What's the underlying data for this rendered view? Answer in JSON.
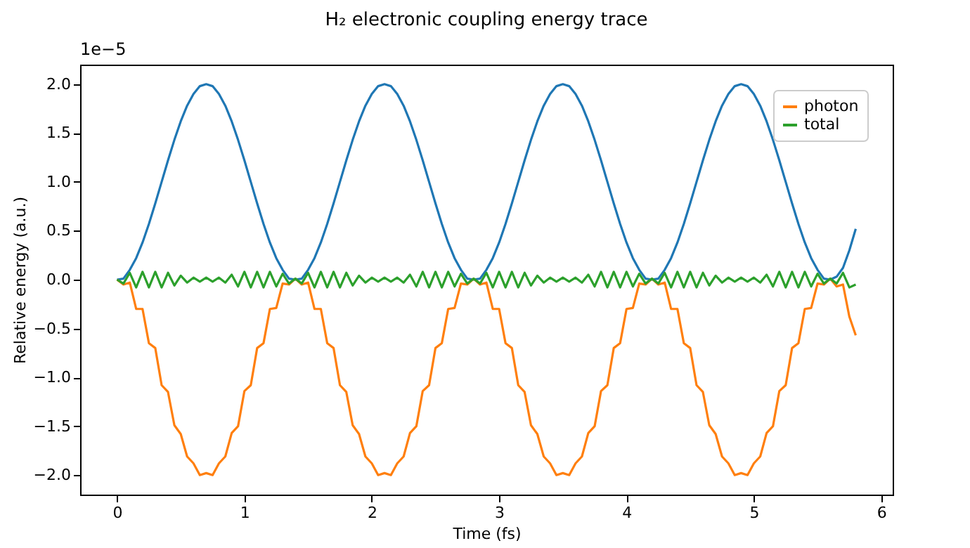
{
  "chart_data": {
    "type": "line",
    "title": "H₂ electronic coupling energy trace",
    "xlabel": "Time (fs)",
    "ylabel": "Relative energy (a.u.)",
    "annotations": [
      "1e−5"
    ],
    "x": [
      0,
      0.05,
      0.1,
      0.15,
      0.2,
      0.25,
      0.3,
      0.35,
      0.4,
      0.45,
      0.5,
      0.55,
      0.6,
      0.65,
      0.7,
      0.75,
      0.8,
      0.85,
      0.9,
      0.95,
      1.0,
      1.05,
      1.1,
      1.15,
      1.2,
      1.25,
      1.3,
      1.35,
      1.4,
      1.45,
      1.5,
      1.55,
      1.6,
      1.65,
      1.7,
      1.75,
      1.8,
      1.85,
      1.9,
      1.95,
      2.0,
      2.05,
      2.1,
      2.15,
      2.2,
      2.25,
      2.3,
      2.35,
      2.4,
      2.45,
      2.5,
      2.55,
      2.6,
      2.65,
      2.7,
      2.75,
      2.8,
      2.85,
      2.9,
      2.95,
      3.0,
      3.05,
      3.1,
      3.15,
      3.2,
      3.25,
      3.3,
      3.35,
      3.4,
      3.45,
      3.5,
      3.55,
      3.6,
      3.65,
      3.7,
      3.75,
      3.8,
      3.85,
      3.9,
      3.95,
      4.0,
      4.05,
      4.1,
      4.15,
      4.2,
      4.25,
      4.3,
      4.35,
      4.4,
      4.45,
      4.5,
      4.55,
      4.6,
      4.65,
      4.7,
      4.75,
      4.8,
      4.85,
      4.9,
      4.95,
      5.0,
      5.05,
      5.1,
      5.15,
      5.2,
      5.25,
      5.3,
      5.35,
      5.4,
      5.45,
      5.5,
      5.55,
      5.6,
      5.65,
      5.7,
      5.75,
      5.8
    ],
    "series": [
      {
        "color": "#1f77b4",
        "values": [
          0,
          0.01,
          0.1,
          0.22,
          0.38,
          0.57,
          0.78,
          1.0,
          1.22,
          1.43,
          1.62,
          1.78,
          1.9,
          1.98,
          2.0,
          1.98,
          1.9,
          1.78,
          1.62,
          1.43,
          1.22,
          1.0,
          0.78,
          0.57,
          0.38,
          0.22,
          0.1,
          0.01,
          0,
          0.01,
          0.1,
          0.22,
          0.38,
          0.57,
          0.78,
          1.0,
          1.22,
          1.43,
          1.62,
          1.78,
          1.9,
          1.98,
          2.0,
          1.98,
          1.9,
          1.78,
          1.62,
          1.43,
          1.22,
          1.0,
          0.78,
          0.57,
          0.38,
          0.22,
          0.1,
          0.01,
          0,
          0.01,
          0.1,
          0.22,
          0.38,
          0.57,
          0.78,
          1.0,
          1.22,
          1.43,
          1.62,
          1.78,
          1.9,
          1.98,
          2.0,
          1.98,
          1.9,
          1.78,
          1.62,
          1.43,
          1.22,
          1.0,
          0.78,
          0.57,
          0.38,
          0.22,
          0.1,
          0.01,
          0,
          0.01,
          0.1,
          0.22,
          0.38,
          0.57,
          0.78,
          1.0,
          1.22,
          1.43,
          1.62,
          1.78,
          1.9,
          1.98,
          2.0,
          1.98,
          1.9,
          1.78,
          1.62,
          1.43,
          1.22,
          1.0,
          0.78,
          0.57,
          0.38,
          0.22,
          0.1,
          0.01,
          0,
          0.03,
          0.12,
          0.3,
          0.52
        ]
      },
      {
        "name": "photon",
        "color": "#ff7f0e",
        "values": [
          0,
          -0.05,
          -0.03,
          -0.3,
          -0.3,
          -0.65,
          -0.7,
          -1.08,
          -1.15,
          -1.49,
          -1.58,
          -1.81,
          -1.88,
          -2.0,
          -1.98,
          -2.0,
          -1.88,
          -1.81,
          -1.57,
          -1.5,
          -1.14,
          -1.08,
          -0.7,
          -0.65,
          -0.3,
          -0.29,
          -0.04,
          -0.05,
          0.01,
          -0.05,
          -0.03,
          -0.3,
          -0.3,
          -0.65,
          -0.7,
          -1.08,
          -1.15,
          -1.49,
          -1.58,
          -1.81,
          -1.88,
          -2.0,
          -1.98,
          -2.0,
          -1.88,
          -1.81,
          -1.57,
          -1.5,
          -1.14,
          -1.08,
          -0.7,
          -0.65,
          -0.3,
          -0.29,
          -0.04,
          -0.05,
          0.01,
          -0.05,
          -0.03,
          -0.3,
          -0.3,
          -0.65,
          -0.7,
          -1.08,
          -1.15,
          -1.49,
          -1.58,
          -1.81,
          -1.88,
          -2.0,
          -1.98,
          -2.0,
          -1.88,
          -1.81,
          -1.57,
          -1.5,
          -1.14,
          -1.08,
          -0.7,
          -0.65,
          -0.3,
          -0.29,
          -0.04,
          -0.05,
          0.01,
          -0.05,
          -0.03,
          -0.3,
          -0.3,
          -0.65,
          -0.7,
          -1.08,
          -1.15,
          -1.49,
          -1.58,
          -1.81,
          -1.88,
          -2.0,
          -1.98,
          -2.0,
          -1.88,
          -1.81,
          -1.57,
          -1.5,
          -1.14,
          -1.08,
          -0.7,
          -0.65,
          -0.3,
          -0.29,
          -0.04,
          -0.05,
          0.01,
          -0.07,
          -0.05,
          -0.38,
          -0.57
        ]
      },
      {
        "name": "total",
        "color": "#2ca02c",
        "values": [
          0,
          -0.04,
          0.07,
          -0.08,
          0.08,
          -0.08,
          0.08,
          -0.08,
          0.07,
          -0.06,
          0.04,
          -0.03,
          0.02,
          -0.02,
          0.02,
          -0.02,
          0.02,
          -0.03,
          0.05,
          -0.07,
          0.08,
          -0.08,
          0.08,
          -0.08,
          0.08,
          -0.07,
          0.06,
          -0.04,
          0.01,
          -0.04,
          0.07,
          -0.08,
          0.08,
          -0.08,
          0.08,
          -0.08,
          0.07,
          -0.06,
          0.04,
          -0.03,
          0.02,
          -0.02,
          0.02,
          -0.02,
          0.02,
          -0.03,
          0.05,
          -0.07,
          0.08,
          -0.08,
          0.08,
          -0.08,
          0.08,
          -0.07,
          0.06,
          -0.04,
          0.01,
          -0.04,
          0.07,
          -0.08,
          0.08,
          -0.08,
          0.08,
          -0.08,
          0.07,
          -0.06,
          0.04,
          -0.03,
          0.02,
          -0.02,
          0.02,
          -0.02,
          0.02,
          -0.03,
          0.05,
          -0.07,
          0.08,
          -0.08,
          0.08,
          -0.08,
          0.08,
          -0.07,
          0.06,
          -0.04,
          0.01,
          -0.04,
          0.07,
          -0.08,
          0.08,
          -0.08,
          0.08,
          -0.08,
          0.07,
          -0.06,
          0.04,
          -0.03,
          0.02,
          -0.02,
          0.02,
          -0.02,
          0.02,
          -0.03,
          0.05,
          -0.07,
          0.08,
          -0.08,
          0.08,
          -0.08,
          0.08,
          -0.07,
          0.06,
          -0.04,
          0.01,
          -0.04,
          0.07,
          -0.08,
          -0.05
        ]
      }
    ],
    "xlim": [
      -0.29,
      6.09
    ],
    "xticks": [
      0,
      1,
      2,
      3,
      4,
      5,
      6
    ],
    "ylim": [
      -2.2,
      2.2
    ],
    "yticks": [
      {
        "value": -2,
        "label": "−2.0"
      },
      {
        "value": -1.5,
        "label": "−1.5"
      },
      {
        "value": -1,
        "label": "−1.0"
      },
      {
        "value": -0.5,
        "label": "−0.5"
      },
      {
        "value": 0,
        "label": "0.0"
      },
      0.5,
      {
        "value": 1,
        "label": "1.0"
      },
      1.5,
      {
        "value": 2,
        "label": "2.0"
      }
    ],
    "grid": false,
    "legend": "top right",
    "marker": "none",
    "line_style": "solid"
  }
}
